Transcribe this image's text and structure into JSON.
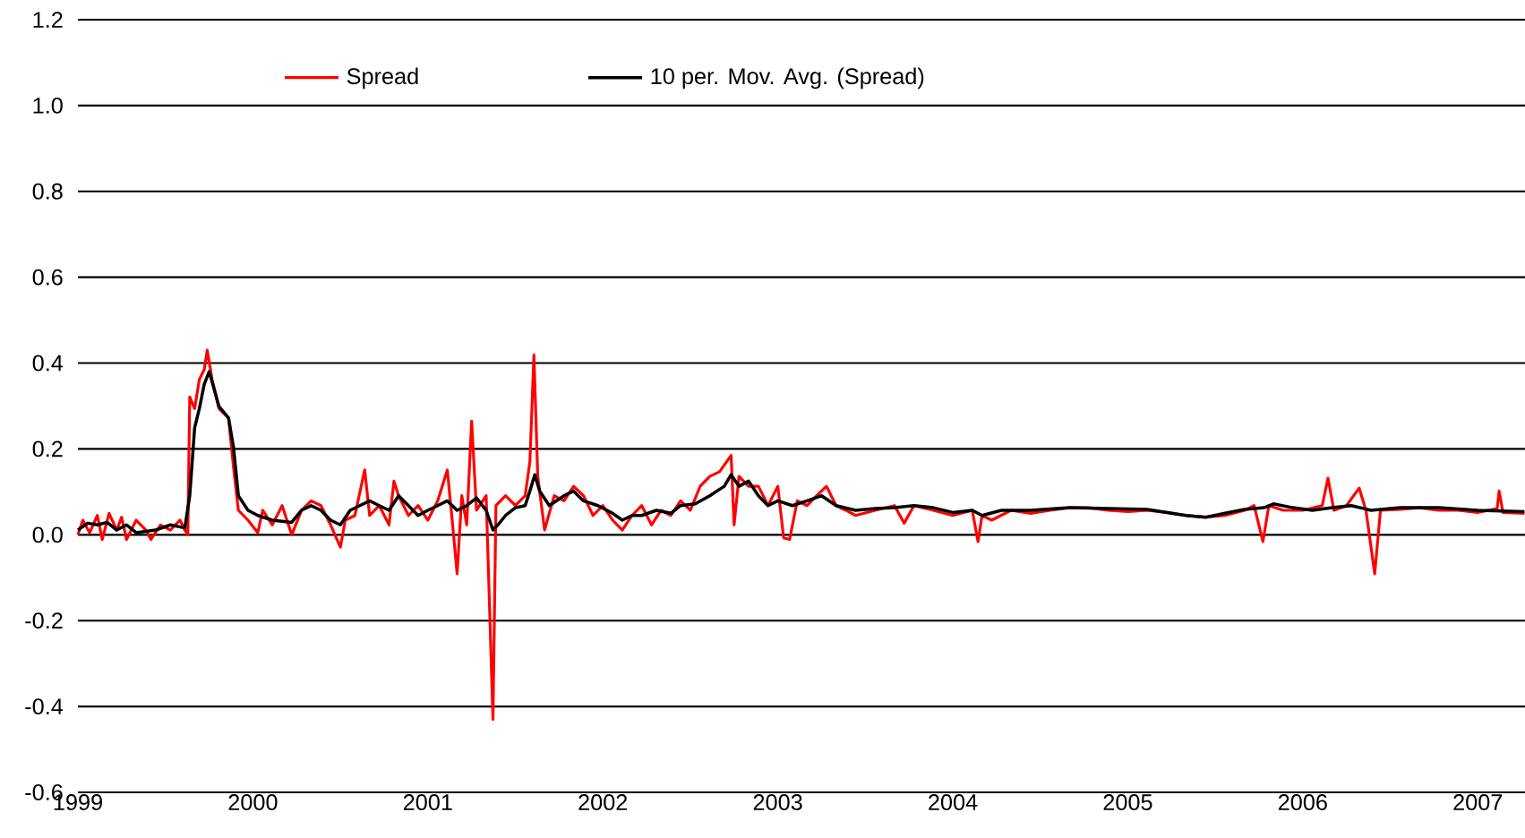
{
  "chart_data": {
    "type": "line",
    "xlim": [
      1999,
      2007.27
    ],
    "xticks": [
      1999,
      2000,
      2001,
      2002,
      2003,
      2004,
      2005,
      2006,
      2007
    ],
    "ylim": [
      -0.6,
      1.2
    ],
    "yticks": [
      {
        "value": -0.6,
        "label": "-0.6"
      },
      {
        "value": -0.4,
        "label": "-0.4"
      },
      {
        "value": -0.2,
        "label": "-0.2"
      },
      {
        "value": 0,
        "label": "0.0"
      },
      {
        "value": 0.2,
        "label": "0.2"
      },
      {
        "value": 0.4,
        "label": "0.4"
      },
      {
        "value": 0.6,
        "label": "0.6"
      },
      {
        "value": 0.8,
        "label": "0.8"
      },
      {
        "value": 1.0,
        "label": "1.0"
      },
      {
        "value": 1.2,
        "label": "1.2"
      }
    ],
    "grid": "y",
    "legend": "top",
    "series": [
      {
        "name": "Spread",
        "color": "#ff0000",
        "x": [
          1999.0,
          1999.028,
          1999.067,
          1999.111,
          1999.139,
          1999.178,
          1999.222,
          1999.25,
          1999.278,
          1999.333,
          1999.389,
          1999.417,
          1999.472,
          1999.528,
          1999.583,
          1999.611,
          1999.628,
          1999.639,
          1999.667,
          1999.694,
          1999.722,
          1999.739,
          1999.767,
          1999.806,
          1999.861,
          1999.889,
          1999.917,
          1999.972,
          2000.028,
          2000.056,
          2000.111,
          2000.167,
          2000.222,
          2000.278,
          2000.333,
          2000.389,
          2000.444,
          2000.5,
          2000.528,
          2000.583,
          2000.639,
          2000.667,
          2000.722,
          2000.778,
          2000.806,
          2000.833,
          2000.889,
          2000.944,
          2001.0,
          2001.056,
          2001.111,
          2001.139,
          2001.167,
          2001.194,
          2001.222,
          2001.25,
          2001.278,
          2001.333,
          2001.372,
          2001.389,
          2001.444,
          2001.5,
          2001.556,
          2001.583,
          2001.606,
          2001.628,
          2001.667,
          2001.722,
          2001.778,
          2001.833,
          2001.889,
          2001.944,
          2002.0,
          2002.056,
          2002.111,
          2002.167,
          2002.222,
          2002.278,
          2002.333,
          2002.389,
          2002.444,
          2002.5,
          2002.556,
          2002.611,
          2002.667,
          2002.733,
          2002.75,
          2002.778,
          2002.833,
          2002.889,
          2002.944,
          2003.0,
          2003.033,
          2003.067,
          2003.111,
          2003.167,
          2003.222,
          2003.278,
          2003.333,
          2003.389,
          2003.444,
          2003.556,
          2003.667,
          2003.722,
          2003.778,
          2003.889,
          2004.0,
          2004.111,
          2004.144,
          2004.167,
          2004.222,
          2004.333,
          2004.444,
          2004.556,
          2004.667,
          2004.778,
          2004.889,
          2005.0,
          2005.111,
          2005.222,
          2005.333,
          2005.444,
          2005.556,
          2005.667,
          2005.722,
          2005.772,
          2005.806,
          2005.889,
          2006.0,
          2006.111,
          2006.144,
          2006.178,
          2006.25,
          2006.322,
          2006.361,
          2006.411,
          2006.444,
          2006.556,
          2006.667,
          2006.778,
          2006.889,
          2007.0,
          2007.111,
          2007.122,
          2007.144,
          2007.267
        ],
        "values": [
          0.0,
          0.034,
          0.005,
          0.045,
          -0.011,
          0.05,
          0.011,
          0.041,
          -0.011,
          0.034,
          0.011,
          -0.011,
          0.023,
          0.011,
          0.034,
          0.011,
          0.0,
          0.321,
          0.294,
          0.362,
          0.385,
          0.43,
          0.362,
          0.294,
          0.272,
          0.158,
          0.057,
          0.034,
          0.005,
          0.057,
          0.023,
          0.068,
          0.0,
          0.057,
          0.079,
          0.068,
          0.023,
          -0.029,
          0.034,
          0.045,
          0.151,
          0.045,
          0.068,
          0.023,
          0.125,
          0.091,
          0.045,
          0.068,
          0.034,
          0.079,
          0.151,
          0.034,
          -0.091,
          0.091,
          0.023,
          0.265,
          0.057,
          0.091,
          -0.43,
          0.068,
          0.091,
          0.068,
          0.091,
          0.17,
          0.419,
          0.136,
          0.011,
          0.091,
          0.079,
          0.113,
          0.091,
          0.045,
          0.068,
          0.034,
          0.011,
          0.045,
          0.068,
          0.023,
          0.057,
          0.045,
          0.079,
          0.057,
          0.113,
          0.136,
          0.147,
          0.185,
          0.023,
          0.136,
          0.113,
          0.113,
          0.068,
          0.113,
          -0.007,
          -0.011,
          0.079,
          0.068,
          0.091,
          0.113,
          0.068,
          0.057,
          0.045,
          0.057,
          0.068,
          0.027,
          0.068,
          0.057,
          0.045,
          0.057,
          -0.016,
          0.045,
          0.034,
          0.057,
          0.05,
          0.057,
          0.063,
          0.063,
          0.057,
          0.054,
          0.057,
          0.052,
          0.045,
          0.041,
          0.045,
          0.057,
          0.068,
          -0.016,
          0.068,
          0.057,
          0.057,
          0.068,
          0.132,
          0.057,
          0.068,
          0.109,
          0.057,
          -0.091,
          0.057,
          0.059,
          0.063,
          0.057,
          0.057,
          0.052,
          0.061,
          0.102,
          0.052,
          0.05
        ]
      },
      {
        "name": "10 per. Mov. Avg. (Spread)",
        "color": "#000000",
        "x": [
          1999.0,
          1999.056,
          1999.111,
          1999.167,
          1999.222,
          1999.278,
          1999.333,
          1999.444,
          1999.528,
          1999.611,
          1999.639,
          1999.667,
          1999.694,
          1999.722,
          1999.75,
          1999.778,
          1999.806,
          1999.861,
          1999.889,
          1999.917,
          1999.972,
          2000.028,
          2000.111,
          2000.222,
          2000.278,
          2000.333,
          2000.389,
          2000.444,
          2000.5,
          2000.556,
          2000.611,
          2000.667,
          2000.722,
          2000.778,
          2000.833,
          2000.889,
          2000.944,
          2001.0,
          2001.056,
          2001.111,
          2001.167,
          2001.222,
          2001.278,
          2001.333,
          2001.372,
          2001.4,
          2001.444,
          2001.5,
          2001.556,
          2001.583,
          2001.611,
          2001.639,
          2001.694,
          2001.778,
          2001.833,
          2001.889,
          2001.972,
          2002.056,
          2002.111,
          2002.167,
          2002.222,
          2002.306,
          2002.389,
          2002.444,
          2002.528,
          2002.611,
          2002.694,
          2002.733,
          2002.778,
          2002.833,
          2002.889,
          2002.944,
          2003.0,
          2003.083,
          2003.167,
          2003.25,
          2003.333,
          2003.444,
          2003.556,
          2003.667,
          2003.778,
          2003.889,
          2004.0,
          2004.111,
          2004.167,
          2004.278,
          2004.444,
          2004.667,
          2004.889,
          2005.111,
          2005.333,
          2005.444,
          2005.556,
          2005.667,
          2005.778,
          2005.833,
          2005.944,
          2006.056,
          2006.167,
          2006.278,
          2006.389,
          2006.556,
          2006.778,
          2007.0,
          2007.267
        ],
        "values": [
          0.011,
          0.027,
          0.023,
          0.029,
          0.011,
          0.023,
          0.005,
          0.011,
          0.023,
          0.016,
          0.091,
          0.249,
          0.294,
          0.351,
          0.38,
          0.34,
          0.299,
          0.272,
          0.204,
          0.091,
          0.057,
          0.045,
          0.034,
          0.029,
          0.057,
          0.068,
          0.057,
          0.034,
          0.023,
          0.057,
          0.068,
          0.079,
          0.068,
          0.057,
          0.091,
          0.068,
          0.045,
          0.057,
          0.068,
          0.079,
          0.057,
          0.068,
          0.086,
          0.057,
          0.011,
          0.023,
          0.045,
          0.063,
          0.068,
          0.102,
          0.14,
          0.102,
          0.068,
          0.091,
          0.102,
          0.079,
          0.068,
          0.05,
          0.034,
          0.045,
          0.045,
          0.057,
          0.05,
          0.068,
          0.072,
          0.091,
          0.113,
          0.14,
          0.113,
          0.125,
          0.091,
          0.068,
          0.079,
          0.068,
          0.079,
          0.091,
          0.068,
          0.057,
          0.061,
          0.063,
          0.068,
          0.063,
          0.052,
          0.057,
          0.045,
          0.057,
          0.057,
          0.063,
          0.061,
          0.059,
          0.045,
          0.041,
          0.05,
          0.059,
          0.063,
          0.072,
          0.063,
          0.057,
          0.063,
          0.068,
          0.057,
          0.063,
          0.063,
          0.057,
          0.054
        ]
      }
    ]
  }
}
